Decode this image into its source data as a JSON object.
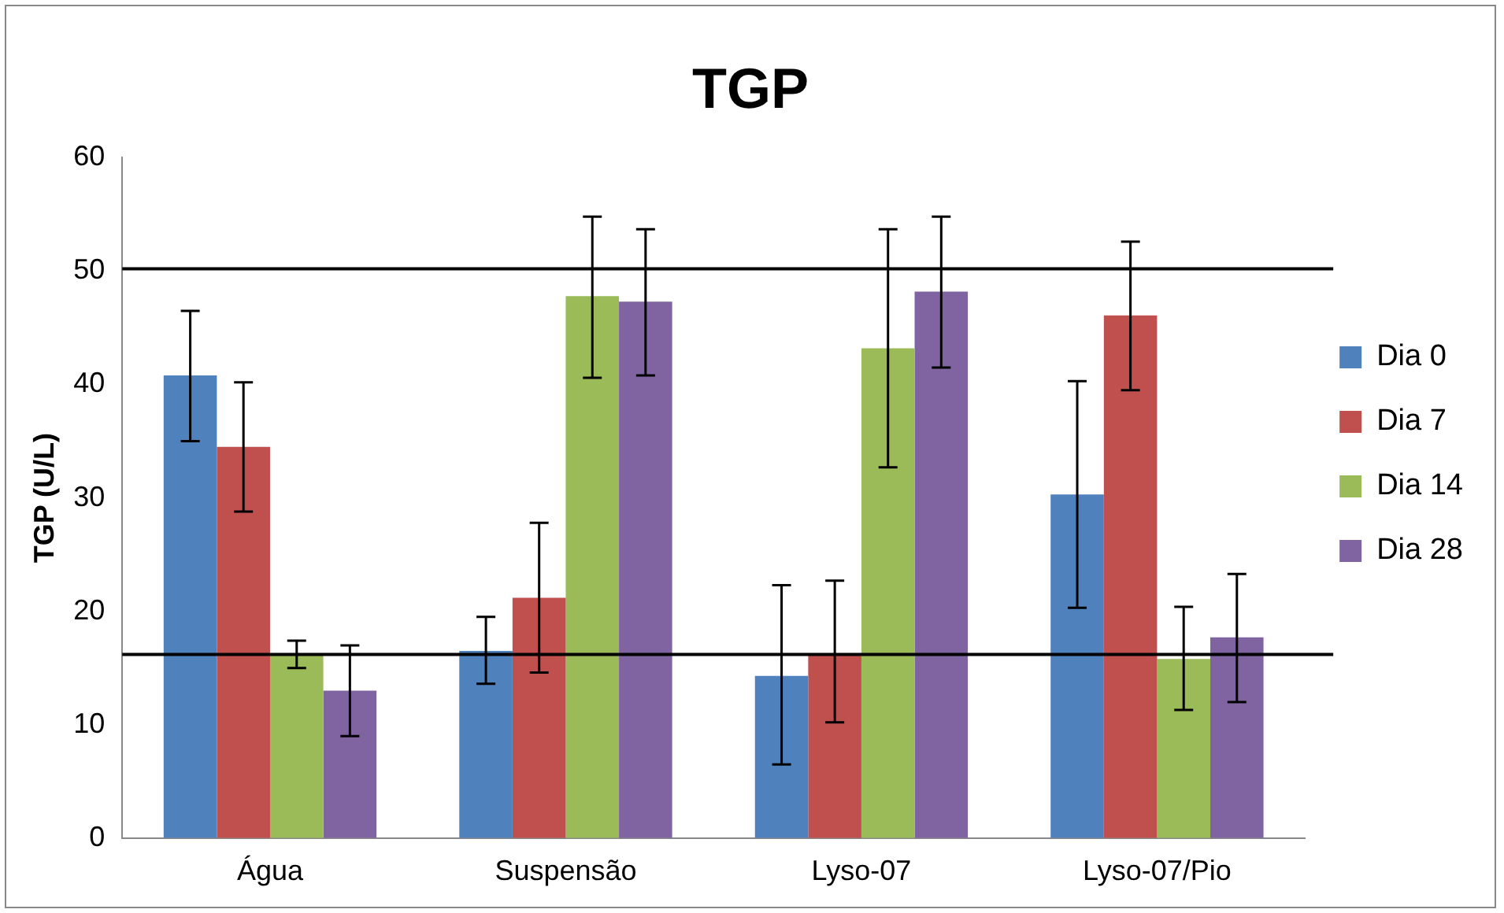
{
  "chart_data": {
    "type": "bar",
    "title": "TGP",
    "ylabel": "TGP (U/L)",
    "categories": [
      "Água",
      "Suspensão",
      "Lyso-07",
      "Lyso-07/Pio"
    ],
    "series": [
      {
        "name": "Dia 0",
        "color": "#4f81bd",
        "values": [
          40.8,
          16.5,
          14.3,
          30.3
        ],
        "errors": [
          [
            35,
            46.5
          ],
          [
            13.6,
            19.5
          ],
          [
            6.5,
            22.3
          ],
          [
            20.3,
            40.3
          ]
        ]
      },
      {
        "name": "Dia 7",
        "color": "#c0504d",
        "values": [
          34.5,
          21.2,
          16.2,
          46.1
        ],
        "errors": [
          [
            28.8,
            40.2
          ],
          [
            14.6,
            27.8
          ],
          [
            10.2,
            22.7
          ],
          [
            39.5,
            52.6
          ]
        ]
      },
      {
        "name": "Dia 14",
        "color": "#9bbb59",
        "values": [
          16.2,
          47.8,
          43.2,
          15.8
        ],
        "errors": [
          [
            15,
            17.4
          ],
          [
            40.6,
            54.8
          ],
          [
            32.7,
            53.7
          ],
          [
            11.3,
            20.4
          ]
        ]
      },
      {
        "name": "Dia 28",
        "color": "#8064a2",
        "values": [
          13,
          47.3,
          48.2,
          17.7
        ],
        "errors": [
          [
            9,
            17
          ],
          [
            40.8,
            53.7
          ],
          [
            41.5,
            54.8
          ],
          [
            12,
            23.3
          ]
        ]
      }
    ],
    "ylim": [
      0,
      60
    ],
    "yticks": [
      0,
      10,
      20,
      30,
      40,
      50,
      60
    ],
    "grid": false,
    "legend": "right",
    "ref_lines": [
      {
        "axis": "y",
        "value": 50.2,
        "color": "#000000"
      },
      {
        "axis": "y",
        "value": 16.2,
        "color": "#000000"
      }
    ]
  }
}
